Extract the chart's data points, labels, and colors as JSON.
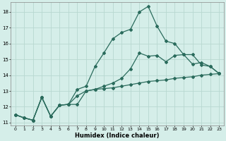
{
  "xlabel": "Humidex (Indice chaleur)",
  "xlim": [
    -0.5,
    23.5
  ],
  "ylim": [
    10.8,
    18.6
  ],
  "xticks": [
    0,
    1,
    2,
    3,
    4,
    5,
    6,
    7,
    8,
    9,
    10,
    11,
    12,
    13,
    14,
    15,
    16,
    17,
    18,
    19,
    20,
    21,
    22,
    23
  ],
  "yticks": [
    11,
    12,
    13,
    14,
    15,
    16,
    17,
    18
  ],
  "bg_color": "#d5eee9",
  "line_color": "#2a6b5c",
  "grid_color": "#b8d8d0",
  "line1_x": [
    0,
    1,
    2,
    3,
    4,
    5,
    6,
    7,
    8,
    9,
    10,
    11,
    12,
    13,
    14,
    15,
    16,
    17,
    18,
    19,
    20,
    21,
    22,
    23
  ],
  "line1_y": [
    11.5,
    11.3,
    11.15,
    12.6,
    11.4,
    12.1,
    12.15,
    12.15,
    13.0,
    13.1,
    13.15,
    13.2,
    13.3,
    13.4,
    13.5,
    13.6,
    13.65,
    13.7,
    13.8,
    13.85,
    13.9,
    14.0,
    14.05,
    14.1
  ],
  "line2_x": [
    0,
    1,
    2,
    3,
    4,
    5,
    6,
    7,
    8,
    9,
    10,
    11,
    12,
    13,
    14,
    15,
    16,
    17,
    18,
    19,
    20,
    21,
    22,
    23
  ],
  "line2_y": [
    11.5,
    11.3,
    11.15,
    12.6,
    11.4,
    12.1,
    12.15,
    12.7,
    13.0,
    13.1,
    13.3,
    13.5,
    13.8,
    14.4,
    15.4,
    15.2,
    15.25,
    14.85,
    15.25,
    15.3,
    14.7,
    14.8,
    14.55,
    14.1
  ],
  "line3_x": [
    0,
    1,
    2,
    3,
    4,
    5,
    6,
    7,
    8,
    9,
    10,
    11,
    12,
    13,
    14,
    15,
    16,
    17,
    18,
    19,
    20,
    21,
    22,
    23
  ],
  "line3_y": [
    11.5,
    11.3,
    11.15,
    12.6,
    11.4,
    12.1,
    12.15,
    13.1,
    13.3,
    14.55,
    15.4,
    16.3,
    16.7,
    16.9,
    18.0,
    18.35,
    17.1,
    16.15,
    16.0,
    15.3,
    15.3,
    14.65,
    14.55,
    14.1
  ]
}
